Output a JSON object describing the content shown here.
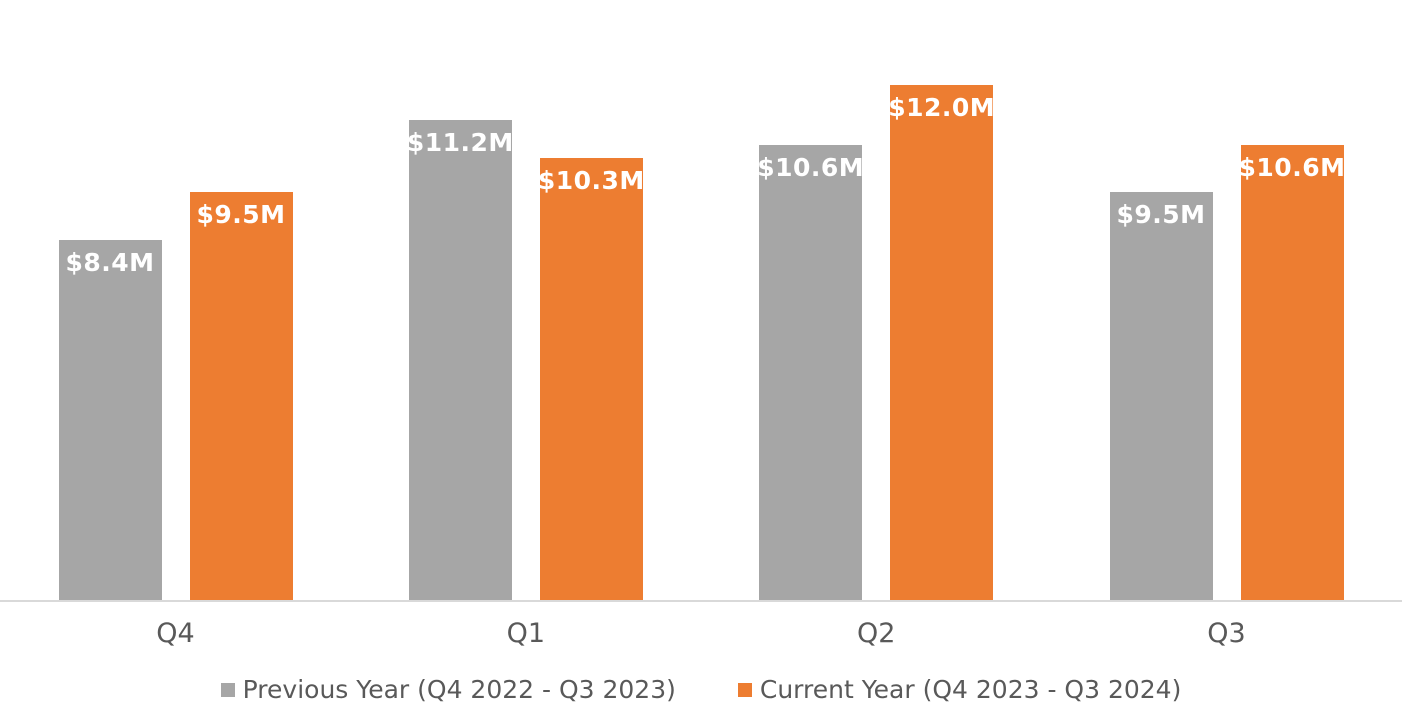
{
  "chart_data": {
    "type": "bar",
    "categories": [
      "Q4",
      "Q1",
      "Q2",
      "Q3"
    ],
    "series": [
      {
        "name": "Previous Year (Q4 2022 - Q3 2023)",
        "color": "#a6a6a6",
        "values": [
          8.4,
          11.2,
          10.6,
          9.5
        ],
        "labels": [
          "$8.4M",
          "$11.2M",
          "$10.6M",
          "$9.5M"
        ]
      },
      {
        "name": "Current Year (Q4 2023 - Q3 2024)",
        "color": "#ed7d31",
        "values": [
          9.5,
          10.3,
          12.0,
          10.6
        ],
        "labels": [
          "$9.5M",
          "$10.3M",
          "$12.0M",
          "$10.6M"
        ]
      }
    ],
    "ylim": [
      0,
      12.0
    ],
    "grid": false,
    "y_axis_visible": false,
    "legend_position": "bottom",
    "data_labels": "inside-top, white"
  },
  "colors": {
    "previous_year": "#a6a6a6",
    "current_year": "#ed7d31",
    "axis_text": "#595959",
    "baseline": "#d9d9d9",
    "bar_label_text": "#ffffff",
    "background": "#ffffff"
  }
}
